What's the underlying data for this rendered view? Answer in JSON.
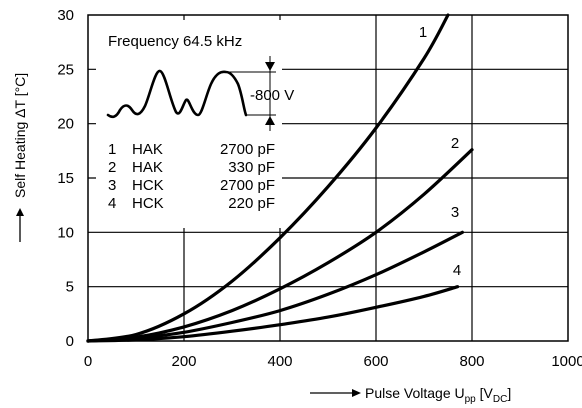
{
  "chart_data": {
    "type": "line",
    "xlabel_prefix": "Pulse Voltage U",
    "xlabel_sub1": "pp",
    "xlabel_mid": " [V",
    "xlabel_sub2": "DC",
    "xlabel_suffix": "]",
    "ylabel": "Self Heating ΔT [°C]",
    "xlim": [
      0,
      1000
    ],
    "ylim": [
      0,
      30
    ],
    "x_ticks": [
      0,
      200,
      400,
      600,
      800,
      1000
    ],
    "y_ticks": [
      0,
      5,
      10,
      15,
      20,
      25,
      30
    ],
    "grid": true,
    "series": [
      {
        "name": "1",
        "x": [
          0,
          100,
          200,
          300,
          400,
          500,
          600,
          700,
          750
        ],
        "y": [
          0,
          0.6,
          2.5,
          5.5,
          9.5,
          14.2,
          19.6,
          26.0,
          30
        ]
      },
      {
        "name": "2",
        "x": [
          0,
          100,
          200,
          300,
          400,
          500,
          600,
          700,
          800
        ],
        "y": [
          0,
          0.35,
          1.3,
          2.8,
          4.8,
          7.2,
          10.0,
          13.5,
          17.6
        ]
      },
      {
        "name": "3",
        "x": [
          0,
          100,
          200,
          300,
          400,
          500,
          600,
          700,
          780
        ],
        "y": [
          0,
          0.25,
          0.8,
          1.7,
          2.8,
          4.3,
          6.1,
          8.2,
          10.0
        ]
      },
      {
        "name": "4",
        "x": [
          0,
          100,
          200,
          300,
          400,
          500,
          600,
          700,
          770
        ],
        "y": [
          0,
          0.1,
          0.4,
          0.9,
          1.5,
          2.2,
          3.1,
          4.1,
          5.0
        ]
      }
    ],
    "curve_labels": [
      "1",
      "2",
      "3",
      "4"
    ],
    "legend": {
      "frequency": "Frequency 64.5 kHz",
      "voltage": "-800 V",
      "rows": [
        {
          "num": "1",
          "type": "HAK",
          "cap": "2700 pF"
        },
        {
          "num": "2",
          "type": "HAK",
          "cap": "330 pF"
        },
        {
          "num": "3",
          "type": "HCK",
          "cap": "2700 pF"
        },
        {
          "num": "4",
          "type": "HCK",
          "cap": "220 pF"
        }
      ]
    }
  }
}
